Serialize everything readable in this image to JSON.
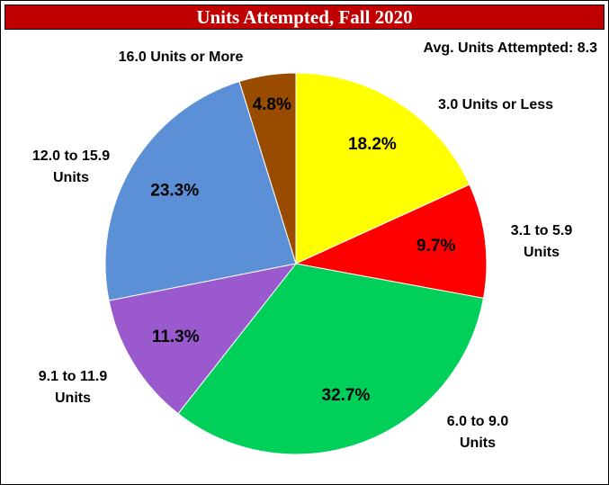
{
  "chart_data": {
    "type": "pie",
    "title": "Units Attempted, Fall 2020",
    "annotation": "Avg. Units Attempted: 8.3",
    "categories": [
      "3.0 Units or Less",
      "3.1 to 5.9 Units",
      "6.0 to 9.0 Units",
      "9.1 to 11.9 Units",
      "12.0 to 15.9 Units",
      "16.0 Units or More"
    ],
    "values": [
      18.2,
      9.7,
      32.7,
      11.3,
      23.3,
      4.8
    ],
    "value_labels": [
      "18.2%",
      "9.7%",
      "32.7%",
      "11.3%",
      "23.3%",
      "4.8%"
    ],
    "colors": [
      "#ffff00",
      "#ff0000",
      "#00d05a",
      "#9a5acd",
      "#5b8fd6",
      "#994c00"
    ]
  }
}
